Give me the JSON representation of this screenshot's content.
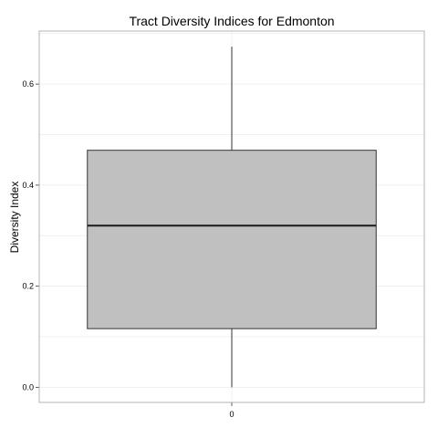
{
  "chart_data": {
    "type": "boxplot",
    "title": "Tract Diversity Indices for Edmonton",
    "xlabel": "",
    "ylabel": "Diversity Index",
    "categories": [
      "0"
    ],
    "ylim": [
      -0.03,
      0.705
    ],
    "yticks": [
      "0.0",
      "0.2",
      "0.4",
      "0.6"
    ],
    "grid": true,
    "boxes": [
      {
        "category": "0",
        "whisker_low": 0.0,
        "q1": 0.116,
        "median": 0.32,
        "q3": 0.469,
        "whisker_high": 0.674
      }
    ],
    "colors": {
      "box_fill": "#c0c0c0",
      "box_stroke": "#333333",
      "grid": "#ebebeb",
      "panel_border": "#b3b3b3"
    }
  }
}
